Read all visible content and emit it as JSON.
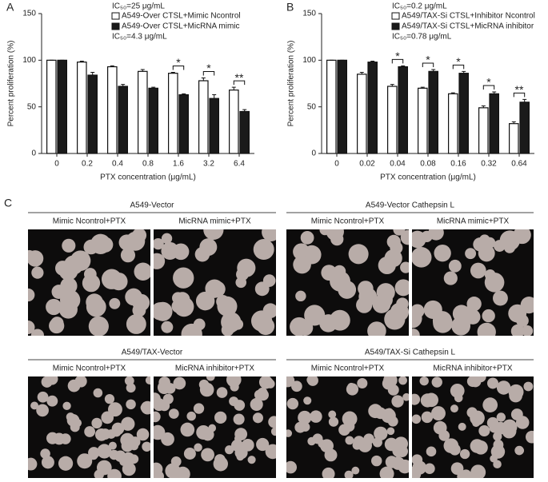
{
  "chart_data": [
    {
      "type": "bar",
      "panel": "A",
      "ylabel": "Percent proliferation (%)",
      "xlabel": "PTX concentration (μg/mL)",
      "annotations": [
        "IC₅₀=25 μg/mL",
        "IC₅₀=4.3 μg/mL"
      ],
      "categories": [
        "0",
        "0.2",
        "0.4",
        "0.8",
        "1.6",
        "3.2",
        "6.4"
      ],
      "series": [
        {
          "name": "A549-Over CTSL+Mimic Ncontrol",
          "color": "#ffffff",
          "values": [
            100,
            98,
            93,
            88,
            86,
            78,
            68
          ],
          "errors": [
            0,
            1,
            1,
            2,
            1,
            3,
            3
          ]
        },
        {
          "name": "A549-Over CTSL+MicRNA mimic",
          "color": "#1a1a1a",
          "values": [
            100,
            84,
            72,
            70,
            63,
            59,
            45
          ],
          "errors": [
            0,
            3,
            2,
            1,
            1,
            4,
            2
          ]
        }
      ],
      "significance": [
        null,
        null,
        null,
        null,
        "*",
        "*",
        "**"
      ],
      "ylim": [
        0,
        150
      ],
      "yticks": [
        0,
        50,
        100,
        150
      ]
    },
    {
      "type": "bar",
      "panel": "B",
      "ylabel": "Percent proliferation (%)",
      "xlabel": "PTX concentration (μg/mL)",
      "annotations": [
        "IC₅₀=0.2 μg/mL",
        "IC₅₀=0.78 μg/mL"
      ],
      "categories": [
        "0",
        "0.02",
        "0.04",
        "0.08",
        "0.16",
        "0.32",
        "0.64"
      ],
      "series": [
        {
          "name": "A549/TAX-Si CTSL+Inhibitor Ncontrol",
          "color": "#ffffff",
          "values": [
            100,
            85,
            72,
            70,
            64,
            49,
            32
          ],
          "errors": [
            0,
            2,
            2,
            1,
            1,
            2,
            2
          ]
        },
        {
          "name": "A549/TAX-Si CTSL+MicRNA inhibitor",
          "color": "#1a1a1a",
          "values": [
            100,
            98,
            93,
            88,
            86,
            64,
            55
          ],
          "errors": [
            0,
            1,
            1,
            2,
            2,
            2,
            3
          ]
        }
      ],
      "significance": [
        null,
        null,
        "*",
        "*",
        "*",
        "*",
        "**"
      ],
      "ylim": [
        0,
        150
      ],
      "yticks": [
        0,
        50,
        100,
        150
      ]
    }
  ],
  "panel_c": {
    "label": "C",
    "groups": [
      {
        "title": "A549-Vector",
        "images": [
          "Mimic Ncontrol+PTX",
          "MicRNA mimic+PTX"
        ]
      },
      {
        "title": "A549-Vector Cathepsin L",
        "images": [
          "Mimic Ncontrol+PTX",
          "MicRNA mimic+PTX"
        ]
      },
      {
        "title": "A549/TAX-Vector",
        "images": [
          "Mimic Ncontrol+PTX",
          "MicRNA inhibitor+PTX"
        ]
      },
      {
        "title": "A549/TAX-Si Cathepsin L",
        "images": [
          "Mimic Ncontrol+PTX",
          "MicRNA inhibitor+PTX"
        ]
      }
    ]
  }
}
